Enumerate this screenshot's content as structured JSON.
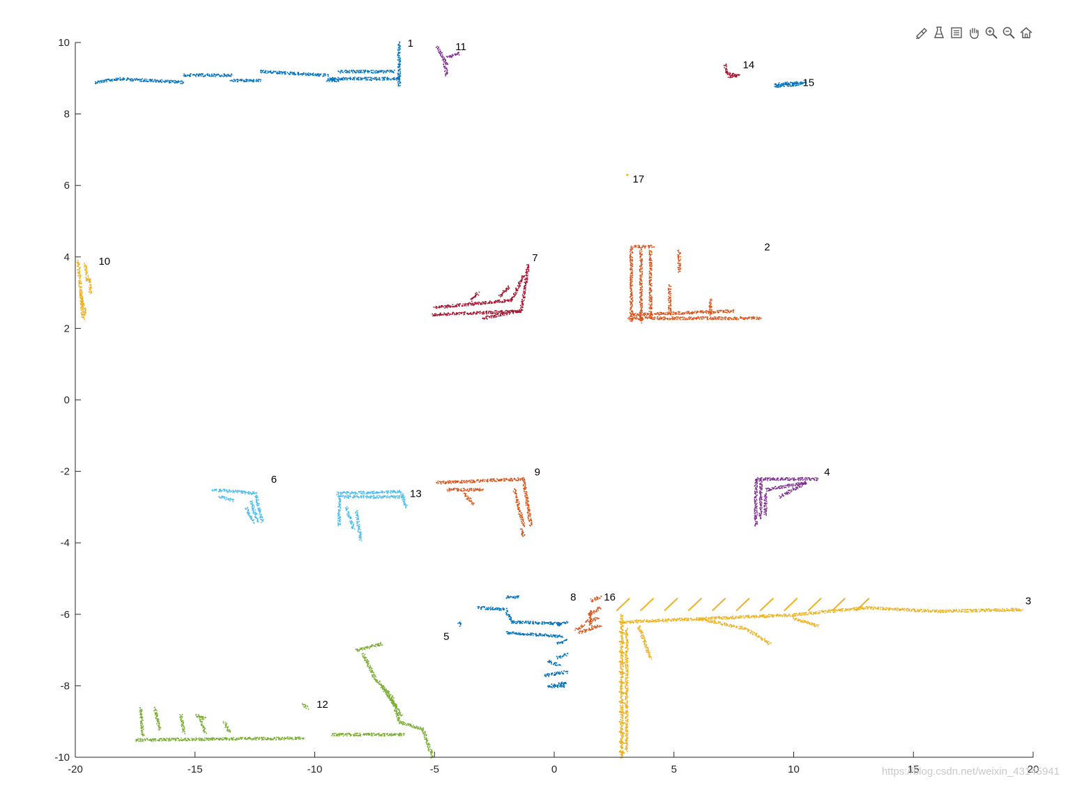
{
  "toolbar": {
    "icons": [
      "brush-icon",
      "data-tips-icon",
      "legend-icon",
      "pan-hand-icon",
      "zoom-in-icon",
      "zoom-out-icon",
      "home-icon"
    ]
  },
  "watermark": "https://blog.csdn.net/weixin_43145941",
  "chart_data": {
    "type": "scatter",
    "title": "",
    "xlabel": "",
    "ylabel": "",
    "xlim": [
      -20,
      20
    ],
    "ylim": [
      -10,
      10
    ],
    "xticks": [
      -20,
      -15,
      -10,
      -5,
      0,
      5,
      10,
      15,
      20
    ],
    "yticks": [
      -10,
      -8,
      -6,
      -4,
      -2,
      0,
      2,
      4,
      6,
      8,
      10
    ],
    "grid": false,
    "legend": "none",
    "colors": {
      "blue": "#0072bd",
      "orange": "#d95319",
      "yellow": "#edb120",
      "purple": "#7e2f8e",
      "green": "#77ac30",
      "cyan": "#4dbeee",
      "red": "#a2142f"
    },
    "clusters": [
      {
        "label": "1",
        "color": "blue",
        "label_at": [
          -6.3,
          10.0
        ],
        "segments": [
          [
            -19.2,
            8.9,
            -18.2,
            9.0
          ],
          [
            -18.2,
            9.0,
            -15.5,
            8.9
          ],
          [
            -15.5,
            9.1,
            -13.5,
            9.1
          ],
          [
            -13.5,
            8.95,
            -12.3,
            8.95
          ],
          [
            -12.3,
            9.2,
            -9.5,
            9.1
          ],
          [
            -9.5,
            8.95,
            -9.0,
            8.95
          ],
          [
            -9.0,
            9.2,
            -6.7,
            9.2
          ],
          [
            -9.5,
            9.0,
            -6.5,
            9.0
          ],
          [
            -6.5,
            10.0,
            -6.5,
            8.8
          ]
        ]
      },
      {
        "label": "2",
        "color": "orange",
        "label_at": [
          8.6,
          4.3
        ],
        "segments": [
          [
            3.1,
            2.3,
            8.6,
            2.3
          ],
          [
            3.2,
            2.4,
            7.5,
            2.5
          ],
          [
            3.2,
            4.3,
            3.2,
            2.2
          ],
          [
            3.6,
            4.2,
            3.6,
            2.2
          ],
          [
            4.0,
            4.2,
            4.0,
            2.3
          ],
          [
            5.2,
            4.2,
            5.2,
            3.6
          ],
          [
            4.8,
            3.2,
            4.8,
            2.4
          ],
          [
            6.5,
            2.8,
            6.5,
            2.4
          ],
          [
            3.3,
            4.3,
            4.1,
            4.3
          ]
        ]
      },
      {
        "label": "3",
        "color": "yellow",
        "label_at": [
          19.5,
          -5.6
        ],
        "segments": [
          [
            2.9,
            -6.2,
            10.0,
            -6.0
          ],
          [
            10.0,
            -6.0,
            13.0,
            -5.8
          ],
          [
            13.0,
            -5.8,
            16.0,
            -5.9
          ],
          [
            16.0,
            -5.9,
            19.5,
            -5.85
          ],
          [
            2.8,
            -6.0,
            2.8,
            -10.0
          ],
          [
            3.0,
            -6.4,
            3.0,
            -9.8
          ],
          [
            3.5,
            -6.3,
            4.0,
            -7.2
          ],
          [
            6.0,
            -6.1,
            8.0,
            -6.4
          ],
          [
            8.0,
            -6.4,
            9.0,
            -6.8
          ],
          [
            10.0,
            -6.1,
            11.0,
            -6.3
          ]
        ]
      },
      {
        "label": "4",
        "color": "purple",
        "label_at": [
          11.1,
          -2.0
        ],
        "segments": [
          [
            8.4,
            -2.2,
            11.0,
            -2.2
          ],
          [
            8.4,
            -2.2,
            8.4,
            -3.5
          ],
          [
            8.6,
            -2.2,
            8.6,
            -3.3
          ],
          [
            8.8,
            -2.5,
            10.5,
            -2.3
          ],
          [
            8.8,
            -3.2,
            8.8,
            -2.6
          ],
          [
            9.4,
            -2.7,
            10.5,
            -2.3
          ]
        ]
      },
      {
        "label": "5",
        "color": "blue",
        "label_at": [
          -4.8,
          -6.6
        ],
        "segments": [
          [
            -3.2,
            -5.8,
            -2.0,
            -5.85
          ],
          [
            -2.0,
            -5.9,
            -1.8,
            -6.2
          ],
          [
            -1.8,
            -6.2,
            0.3,
            -6.25
          ],
          [
            -2.0,
            -6.5,
            0.3,
            -6.6
          ],
          [
            -4.0,
            -6.2,
            -3.9,
            -6.3
          ],
          [
            -2.0,
            -5.5,
            -1.5,
            -5.5
          ]
        ]
      },
      {
        "label": "6",
        "color": "cyan",
        "label_at": [
          -12.0,
          -2.2
        ],
        "segments": [
          [
            -14.3,
            -2.5,
            -12.5,
            -2.6
          ],
          [
            -12.5,
            -2.6,
            -12.2,
            -3.4
          ],
          [
            -12.7,
            -2.8,
            -12.4,
            -3.4
          ],
          [
            -14.0,
            -2.7,
            -13.4,
            -2.8
          ],
          [
            -12.9,
            -3.0,
            -12.6,
            -3.4
          ]
        ]
      },
      {
        "label": "7",
        "color": "red",
        "label_at": [
          -1.1,
          4.0
        ],
        "segments": [
          [
            -5.1,
            2.4,
            -1.4,
            2.5
          ],
          [
            -1.4,
            2.5,
            -1.1,
            3.8
          ],
          [
            -5.0,
            2.6,
            -1.8,
            2.8
          ],
          [
            -1.8,
            2.8,
            -1.3,
            3.5
          ],
          [
            -3.5,
            2.8,
            -3.2,
            3.0
          ],
          [
            -2.3,
            2.9,
            -1.9,
            3.2
          ],
          [
            -3.0,
            2.3,
            -1.5,
            2.5
          ]
        ]
      },
      {
        "label": "8",
        "color": "blue",
        "label_at": [
          0.5,
          -5.5
        ],
        "segments": [
          [
            0.1,
            -6.3,
            0.5,
            -6.2
          ],
          [
            0.1,
            -6.8,
            0.5,
            -6.7
          ],
          [
            0.1,
            -7.2,
            0.5,
            -7.1
          ],
          [
            -0.4,
            -7.7,
            0.5,
            -7.6
          ],
          [
            -0.3,
            -8.0,
            0.5,
            -7.9
          ],
          [
            -0.3,
            -7.3,
            0.2,
            -7.4
          ],
          [
            -0.1,
            -8.0,
            0.4,
            -8.0
          ]
        ]
      },
      {
        "label": "9",
        "color": "orange",
        "label_at": [
          -1.0,
          -2.0
        ],
        "segments": [
          [
            -4.9,
            -2.3,
            -1.3,
            -2.2
          ],
          [
            -1.3,
            -2.2,
            -1.0,
            -3.5
          ],
          [
            -4.5,
            -2.5,
            -3.0,
            -2.5
          ],
          [
            -1.7,
            -2.5,
            -1.3,
            -3.5
          ],
          [
            -3.8,
            -2.6,
            -3.4,
            -2.9
          ],
          [
            -1.4,
            -3.6,
            -1.3,
            -3.8
          ]
        ]
      },
      {
        "label": "10",
        "color": "yellow",
        "label_at": [
          -19.2,
          3.9
        ],
        "segments": [
          [
            -19.9,
            3.9,
            -19.7,
            2.3
          ],
          [
            -19.6,
            3.8,
            -19.5,
            3.3
          ],
          [
            -19.4,
            3.4,
            -19.4,
            3.0
          ],
          [
            -19.8,
            3.0,
            -19.6,
            2.4
          ]
        ]
      },
      {
        "label": "11",
        "color": "purple",
        "label_at": [
          -4.3,
          9.9
        ],
        "segments": [
          [
            -4.9,
            9.9,
            -4.5,
            9.4
          ],
          [
            -4.5,
            9.6,
            -4.0,
            9.7
          ],
          [
            -4.6,
            9.4,
            -4.5,
            9.1
          ]
        ]
      },
      {
        "label": "12",
        "color": "green",
        "label_at": [
          -10.1,
          -8.5
        ],
        "segments": [
          [
            -17.5,
            -9.5,
            -10.5,
            -9.45
          ],
          [
            -9.3,
            -9.35,
            -6.3,
            -9.35
          ],
          [
            -17.3,
            -8.6,
            -17.2,
            -9.4
          ],
          [
            -16.7,
            -8.6,
            -16.5,
            -9.2
          ],
          [
            -15.6,
            -8.8,
            -15.5,
            -9.3
          ],
          [
            -15.0,
            -8.8,
            -14.6,
            -8.9
          ],
          [
            -14.8,
            -8.9,
            -14.6,
            -9.3
          ],
          [
            -13.8,
            -9.0,
            -13.6,
            -9.3
          ],
          [
            -8.3,
            -7.0,
            -7.2,
            -6.8
          ],
          [
            -8.0,
            -7.1,
            -7.5,
            -7.8
          ],
          [
            -7.5,
            -7.8,
            -6.8,
            -8.3
          ],
          [
            -6.8,
            -8.3,
            -6.5,
            -9.0
          ],
          [
            -6.5,
            -9.0,
            -5.5,
            -9.2
          ],
          [
            -5.5,
            -9.2,
            -5.1,
            -10.0
          ],
          [
            -7.2,
            -8.0,
            -6.4,
            -8.8
          ],
          [
            -10.5,
            -8.5,
            -10.3,
            -8.6
          ]
        ]
      },
      {
        "label": "13",
        "color": "cyan",
        "label_at": [
          -6.2,
          -2.6
        ],
        "segments": [
          [
            -9.1,
            -2.6,
            -6.4,
            -2.55
          ],
          [
            -9.0,
            -2.7,
            -6.3,
            -2.7
          ],
          [
            -6.4,
            -2.6,
            -6.2,
            -3.0
          ],
          [
            -9.0,
            -2.7,
            -9.0,
            -3.5
          ],
          [
            -8.3,
            -3.1,
            -8.1,
            -3.9
          ],
          [
            -8.7,
            -3.0,
            -8.4,
            -3.6
          ]
        ]
      },
      {
        "label": "14",
        "color": "red",
        "label_at": [
          7.7,
          9.4
        ],
        "segments": [
          [
            7.1,
            9.4,
            7.2,
            9.15
          ],
          [
            7.2,
            9.15,
            7.6,
            9.1
          ],
          [
            7.3,
            9.05,
            7.7,
            9.1
          ]
        ]
      },
      {
        "label": "15",
        "color": "blue",
        "label_at": [
          10.2,
          8.9
        ],
        "segments": [
          [
            9.2,
            8.85,
            10.5,
            8.9
          ],
          [
            9.2,
            8.8,
            10.3,
            8.85
          ]
        ]
      },
      {
        "label": "16",
        "color": "orange",
        "label_at": [
          1.9,
          -5.5
        ],
        "segments": [
          [
            1.5,
            -5.6,
            1.9,
            -5.5
          ],
          [
            1.4,
            -6.0,
            1.9,
            -5.8
          ],
          [
            1.3,
            -6.2,
            1.8,
            -6.1
          ],
          [
            1.0,
            -6.5,
            1.9,
            -6.3
          ],
          [
            0.9,
            -6.4,
            1.2,
            -6.3
          ],
          [
            1.5,
            -6.3,
            1.5,
            -5.9
          ]
        ]
      },
      {
        "label": "17",
        "color": "yellow",
        "label_at": [
          3.1,
          6.2
        ],
        "segments": [
          [
            3.0,
            6.3,
            3.0,
            6.3
          ]
        ]
      }
    ],
    "hatch": {
      "color": "yellow",
      "top_row": {
        "x_from": 2.6,
        "x_to": 13.0,
        "step": 1.0,
        "y_top": -5.55,
        "y_bottom": -5.9,
        "dx": 0.55
      },
      "left_col": {
        "y_from": -6.2,
        "y_to": -9.9,
        "step": 0.28,
        "x_left": 2.7,
        "x_right": 2.95
      }
    }
  }
}
